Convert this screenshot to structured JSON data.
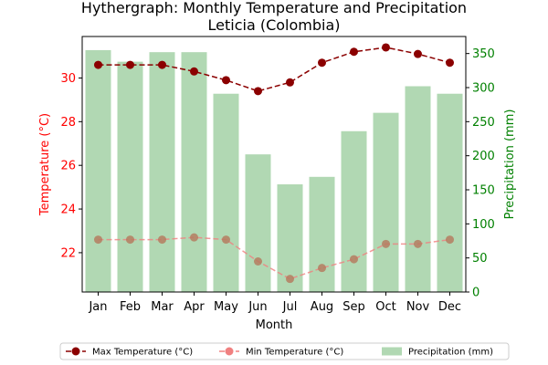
{
  "chart_data": {
    "type": "bar",
    "title": "Hythergraph: Monthly Temperature and Precipitation",
    "subtitle": "Leticia (Colombia)",
    "xlabel": "Month",
    "ylabel_left": "Temperature (°C)",
    "ylabel_right": "Precipitation (mm)",
    "categories": [
      "Jan",
      "Feb",
      "Mar",
      "Apr",
      "May",
      "Jun",
      "Jul",
      "Aug",
      "Sep",
      "Oct",
      "Nov",
      "Dec"
    ],
    "ylim_left": [
      20.2,
      31.9
    ],
    "yticks_left": [
      22,
      24,
      26,
      28,
      30
    ],
    "ylim_right": [
      0,
      375
    ],
    "yticks_right": [
      0,
      50,
      100,
      150,
      200,
      250,
      300,
      350
    ],
    "grid": false,
    "legend_placement": "bottom-center",
    "series": [
      {
        "name": "Max Temperature (°C)",
        "kind": "line",
        "axis": "left",
        "color": "#8b0000",
        "values": [
          30.6,
          30.6,
          30.6,
          30.3,
          29.9,
          29.4,
          29.8,
          30.7,
          31.2,
          31.4,
          31.1,
          30.7
        ]
      },
      {
        "name": "Min Temperature (°C)",
        "kind": "line",
        "axis": "left",
        "color": "#f08080",
        "values": [
          22.6,
          22.6,
          22.6,
          22.7,
          22.6,
          21.6,
          20.8,
          21.3,
          21.7,
          22.4,
          22.4,
          22.6
        ]
      },
      {
        "name": "Precipitation (mm)",
        "kind": "bar",
        "axis": "right",
        "color": "#b1d8b3",
        "values": [
          355,
          338,
          352,
          352,
          291,
          202,
          158,
          169,
          236,
          263,
          302,
          291
        ]
      }
    ],
    "colors": {
      "left_axis": "#ff0000",
      "right_axis": "#008000"
    }
  }
}
